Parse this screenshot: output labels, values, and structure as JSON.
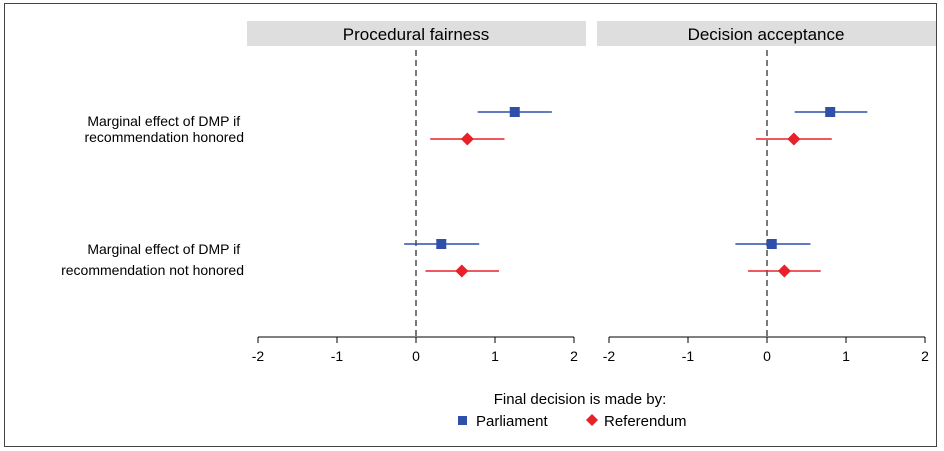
{
  "chart_data": {
    "type": "scatter",
    "subtype": "coefficient-plot-with-confidence-intervals",
    "panels": [
      {
        "title": "Procedural fairness",
        "xlim": [
          -2,
          2
        ]
      },
      {
        "title": "Decision acceptance",
        "xlim": [
          -2,
          2
        ]
      }
    ],
    "x_ticks": [
      "-2",
      "-1",
      "0",
      "1",
      "2"
    ],
    "reference_line": 0,
    "rows": [
      "Marginal effect of DMP if recommendation honored",
      "Marginal effect of DMP if recommendation not honored"
    ],
    "legend": {
      "title": "Final decision is made by:",
      "placement": "bottom-center"
    },
    "series": [
      {
        "name": "Parliament",
        "color": "#2f4fa8",
        "marker": "square",
        "points": [
          {
            "panel": "Procedural fairness",
            "row": 0,
            "estimate": 1.25,
            "lower": 0.78,
            "upper": 1.72
          },
          {
            "panel": "Procedural fairness",
            "row": 1,
            "estimate": 0.32,
            "lower": -0.15,
            "upper": 0.8
          },
          {
            "panel": "Decision acceptance",
            "row": 0,
            "estimate": 0.8,
            "lower": 0.35,
            "upper": 1.27
          },
          {
            "panel": "Decision acceptance",
            "row": 1,
            "estimate": 0.06,
            "lower": -0.4,
            "upper": 0.55
          }
        ]
      },
      {
        "name": "Referendum",
        "color": "#e8202a",
        "marker": "diamond",
        "points": [
          {
            "panel": "Procedural fairness",
            "row": 0,
            "estimate": 0.65,
            "lower": 0.18,
            "upper": 1.12
          },
          {
            "panel": "Procedural fairness",
            "row": 1,
            "estimate": 0.58,
            "lower": 0.12,
            "upper": 1.05
          },
          {
            "panel": "Decision acceptance",
            "row": 0,
            "estimate": 0.34,
            "lower": -0.14,
            "upper": 0.82
          },
          {
            "panel": "Decision acceptance",
            "row": 1,
            "estimate": 0.22,
            "lower": -0.24,
            "upper": 0.68
          }
        ]
      }
    ]
  }
}
